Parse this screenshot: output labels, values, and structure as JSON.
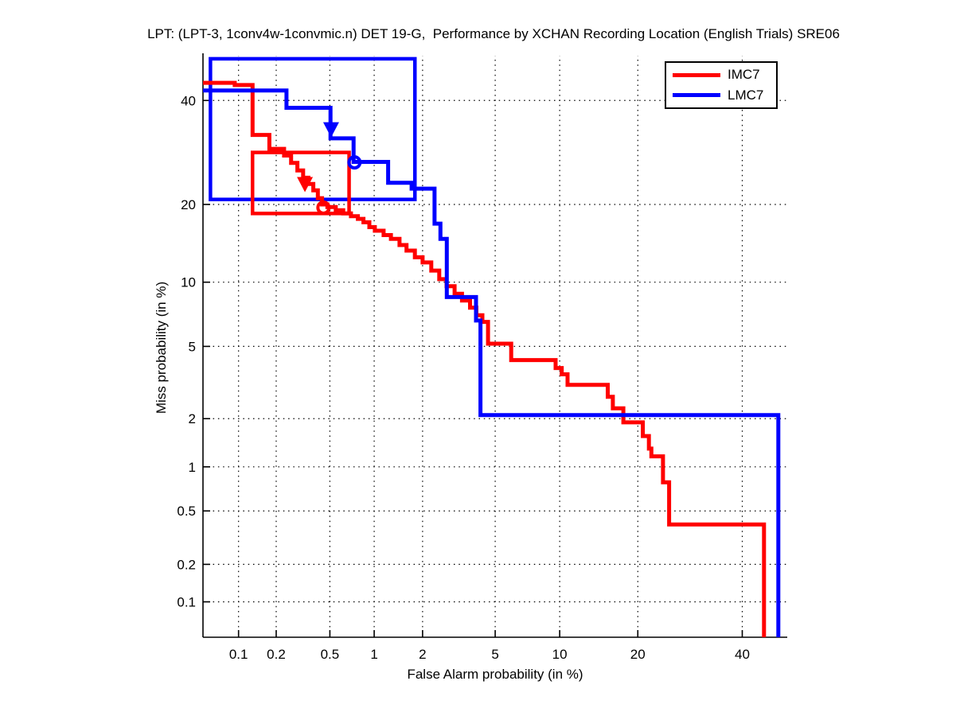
{
  "chart_data": {
    "type": "line",
    "variant": "det-step-curves",
    "title": "LPT: (LPT-3, 1conv4w-1convmic.n) DET 19-G,  Performance by XCHAN Recording Location (English Trials) SRE06",
    "xlabel": "False Alarm probability (in %)",
    "ylabel": "Miss probability (in %)",
    "x_scale": "probit",
    "y_scale": "probit",
    "xlim_pct": [
      0.05,
      50
    ],
    "ylim_pct": [
      0.05,
      50
    ],
    "x_ticks_pct": [
      0.1,
      0.2,
      0.5,
      1,
      2,
      5,
      10,
      20,
      40
    ],
    "x_tick_labels": [
      "0.1",
      "0.2",
      "0.5",
      "1",
      "2",
      "5",
      "10",
      "20",
      "40"
    ],
    "y_ticks_pct": [
      0.1,
      0.2,
      0.5,
      1,
      2,
      5,
      10,
      20,
      40
    ],
    "y_tick_labels": [
      "0.1",
      "0.2",
      "0.5",
      "1",
      "2",
      "5",
      "10",
      "20",
      "40"
    ],
    "grid": "dotted",
    "legend_position": "top-right",
    "series": [
      {
        "name": "IMC7",
        "color": "#ff0000",
        "start_pct": [
          0.05,
          43.9
        ],
        "drops_pct": [
          [
            0.093,
            43.4
          ],
          [
            0.13,
            32.7
          ],
          [
            0.177,
            29.9
          ],
          [
            0.23,
            28.6
          ],
          [
            0.26,
            27.2
          ],
          [
            0.29,
            25.8
          ],
          [
            0.32,
            24.5
          ],
          [
            0.35,
            23.4
          ],
          [
            0.38,
            22.3
          ],
          [
            0.41,
            21.0
          ],
          [
            0.44,
            20.0
          ],
          [
            0.48,
            19.6
          ],
          [
            0.55,
            19.1
          ],
          [
            0.62,
            18.6
          ],
          [
            0.7,
            18.2
          ],
          [
            0.78,
            17.8
          ],
          [
            0.85,
            17.3
          ],
          [
            0.93,
            16.6
          ],
          [
            1.01,
            16.1
          ],
          [
            1.15,
            15.5
          ],
          [
            1.28,
            15.0
          ],
          [
            1.45,
            14.2
          ],
          [
            1.6,
            13.5
          ],
          [
            1.8,
            12.7
          ],
          [
            2.0,
            12.1
          ],
          [
            2.25,
            11.2
          ],
          [
            2.5,
            10.3
          ],
          [
            2.75,
            9.6
          ],
          [
            3.05,
            8.9
          ],
          [
            3.35,
            8.3
          ],
          [
            3.7,
            7.7
          ],
          [
            4.0,
            7.1
          ],
          [
            4.3,
            6.6
          ],
          [
            4.6,
            5.16
          ],
          [
            6.0,
            4.25
          ],
          [
            9.6,
            3.86
          ],
          [
            10.2,
            3.57
          ],
          [
            10.8,
            3.13
          ],
          [
            15.6,
            2.68
          ],
          [
            16.3,
            2.3
          ],
          [
            17.8,
            1.9
          ],
          [
            20.8,
            1.57
          ],
          [
            21.8,
            1.31
          ],
          [
            22.2,
            1.17
          ],
          [
            24.2,
            0.79
          ],
          [
            25.3,
            0.4
          ],
          [
            44.8,
            0.05
          ]
        ],
        "confidence_box_pct": {
          "fa": [
            0.13,
            0.68
          ],
          "miss": [
            18.6,
            29.2
          ]
        },
        "markers_pct": {
          "arrow": [
            0.33,
            23.5
          ],
          "circle": [
            0.45,
            19.5
          ]
        }
      },
      {
        "name": "LMC7",
        "color": "#0000ff",
        "start_pct": [
          0.05,
          42.2
        ],
        "drops_pct": [
          [
            0.24,
            38.4
          ],
          [
            0.505,
            32.0
          ],
          [
            0.73,
            27.4
          ],
          [
            1.23,
            23.6
          ],
          [
            1.72,
            22.6
          ],
          [
            2.35,
            17.1
          ],
          [
            2.54,
            15.0
          ],
          [
            2.76,
            8.6
          ],
          [
            3.98,
            6.7
          ],
          [
            4.2,
            2.1
          ],
          [
            48.0,
            0.05
          ]
        ],
        "confidence_box_pct": {
          "fa": [
            0.058,
            1.8
          ],
          "miss": [
            20.8,
            49.3
          ]
        },
        "markers_pct": {
          "arrow": [
            0.51,
            34.0
          ],
          "circle": [
            0.74,
            27.3
          ]
        }
      }
    ]
  }
}
